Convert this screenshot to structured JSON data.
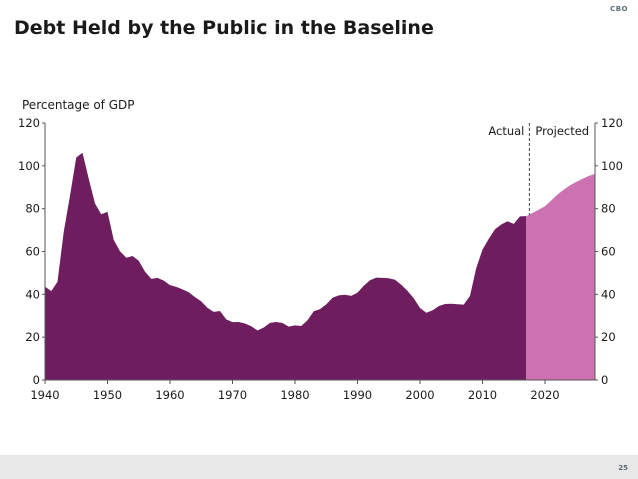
{
  "slide": {
    "title": "Debt Held by the Public in the Baseline",
    "logo": "CBO",
    "page_number": "25"
  },
  "colors": {
    "actual": "#6e1e5e",
    "projected": "#cc72b0",
    "axis": "#555555"
  },
  "chart_data": {
    "type": "area",
    "title": "Debt Held by the Public in the Baseline",
    "ylabel": "Percentage of GDP",
    "xlabel": "",
    "xlim": [
      1940,
      2028
    ],
    "ylim": [
      0,
      120
    ],
    "x_ticks": [
      1940,
      1950,
      1960,
      1970,
      1980,
      1990,
      2000,
      2010,
      2020
    ],
    "y_ticks": [
      0,
      20,
      40,
      60,
      80,
      100,
      120
    ],
    "right_axis_ticks": [
      0,
      20,
      40,
      60,
      80,
      100,
      120
    ],
    "grid": false,
    "divider_year": 2017.5,
    "annotations": [
      "Actual",
      "Projected"
    ],
    "series": [
      {
        "name": "Actual",
        "x": [
          1940,
          1941,
          1942,
          1943,
          1944,
          1945,
          1946,
          1947,
          1948,
          1949,
          1950,
          1951,
          1952,
          1953,
          1954,
          1955,
          1956,
          1957,
          1958,
          1959,
          1960,
          1961,
          1962,
          1963,
          1964,
          1965,
          1966,
          1967,
          1968,
          1969,
          1970,
          1971,
          1972,
          1973,
          1974,
          1975,
          1976,
          1977,
          1978,
          1979,
          1980,
          1981,
          1982,
          1983,
          1984,
          1985,
          1986,
          1987,
          1988,
          1989,
          1990,
          1991,
          1992,
          1993,
          1994,
          1995,
          1996,
          1997,
          1998,
          1999,
          2000,
          2001,
          2002,
          2003,
          2004,
          2005,
          2006,
          2007,
          2008,
          2009,
          2010,
          2011,
          2012,
          2013,
          2014,
          2015,
          2016,
          2017
        ],
        "values": [
          43.6,
          41.5,
          45.9,
          69.2,
          86.1,
          103.9,
          106.1,
          93.9,
          82.4,
          77.4,
          78.5,
          65.4,
          60.1,
          57.1,
          57.9,
          55.7,
          50.6,
          47.2,
          47.7,
          46.4,
          44.3,
          43.5,
          42.3,
          41.0,
          38.7,
          36.7,
          33.7,
          31.8,
          32.2,
          28.3,
          27.0,
          27.1,
          26.4,
          25.1,
          23.1,
          24.5,
          26.7,
          27.1,
          26.6,
          24.9,
          25.5,
          25.2,
          27.9,
          32.1,
          33.1,
          35.3,
          38.4,
          39.5,
          39.8,
          39.3,
          40.8,
          44.0,
          46.6,
          47.8,
          47.7,
          47.5,
          46.8,
          44.5,
          41.6,
          38.2,
          33.6,
          31.4,
          32.5,
          34.5,
          35.5,
          35.6,
          35.4,
          35.2,
          39.3,
          52.3,
          60.9,
          65.9,
          70.4,
          72.6,
          74.1,
          72.9,
          76.4,
          76.5
        ]
      },
      {
        "name": "Projected",
        "x": [
          2017,
          2018,
          2019,
          2020,
          2021,
          2022,
          2023,
          2024,
          2025,
          2026,
          2027,
          2028
        ],
        "values": [
          76.5,
          78.0,
          79.5,
          81.2,
          83.8,
          86.6,
          88.9,
          90.9,
          92.5,
          93.9,
          95.3,
          96.2
        ]
      }
    ]
  }
}
